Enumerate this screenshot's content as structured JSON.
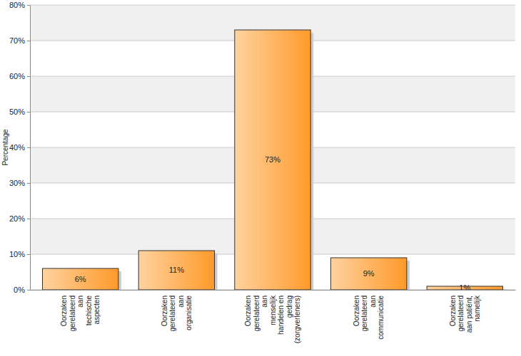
{
  "chart_data": {
    "type": "bar",
    "ylabel": "Percentage",
    "categories": [
      "Oorzaken gerelateerd aan techische aspecten",
      "Oorzaken gerelateerd aan organisatie",
      "Oorzaken gerelateerd aan menselijk handelen en gedrag (zorgverleners)",
      "Oorzaken gerelateerd aan communicatie",
      "Oorzaken gerelateerd aan patiënt, namelijk"
    ],
    "values": [
      6,
      11,
      73,
      9,
      1
    ],
    "value_labels": [
      "6%",
      "11%",
      "73%",
      "9%",
      "1%"
    ],
    "data_labels": true,
    "color": "#ff9a2a",
    "ylim": [
      0,
      80
    ],
    "yticks": [
      {
        "value": 0,
        "label": "0%"
      },
      {
        "value": 10,
        "label": "10%"
      },
      {
        "value": 20,
        "label": "20%"
      },
      {
        "value": 30,
        "label": "30%"
      },
      {
        "value": 40,
        "label": "40%"
      },
      {
        "value": 50,
        "label": "50%"
      },
      {
        "value": 60,
        "label": "60%"
      },
      {
        "value": 70,
        "label": "70%"
      },
      {
        "value": 80,
        "label": "80%"
      }
    ],
    "grid": true
  }
}
